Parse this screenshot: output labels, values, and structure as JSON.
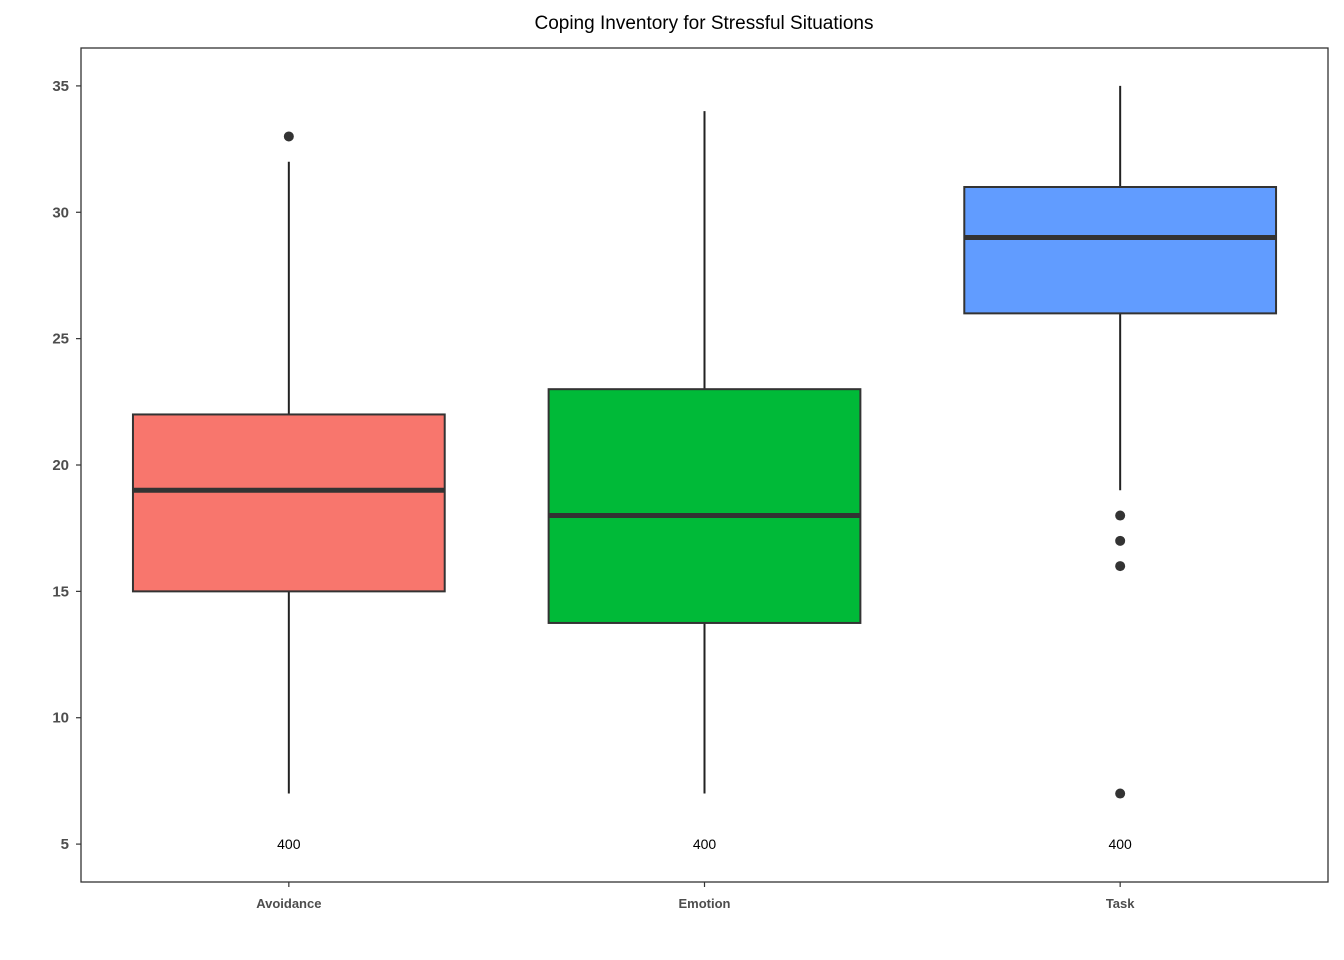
{
  "chart_data": {
    "type": "box",
    "title": "Coping Inventory for Stressful Situations",
    "xlabel": "",
    "ylabel": "",
    "ylim": [
      3.5,
      36.5
    ],
    "yticks": [
      5,
      10,
      15,
      20,
      25,
      30,
      35
    ],
    "categories": [
      "Avoidance",
      "Emotion",
      "Task"
    ],
    "boxes": [
      {
        "category": "Avoidance",
        "color": "#F8766D",
        "whisker_low": 7,
        "q1": 15,
        "median": 19,
        "q3": 22,
        "whisker_high": 32,
        "outliers": [
          33
        ],
        "count_label": "400"
      },
      {
        "category": "Emotion",
        "color": "#00BA38",
        "whisker_low": 7,
        "q1": 13.75,
        "median": 18,
        "q3": 23,
        "whisker_high": 34,
        "outliers": [],
        "count_label": "400"
      },
      {
        "category": "Task",
        "color": "#619CFF",
        "whisker_low": 19,
        "q1": 26,
        "median": 29,
        "q3": 31,
        "whisker_high": 35,
        "outliers": [
          18,
          17,
          16,
          7
        ],
        "count_label": "400"
      }
    ],
    "count_label_y": 5,
    "grid": false,
    "legend": "none"
  }
}
